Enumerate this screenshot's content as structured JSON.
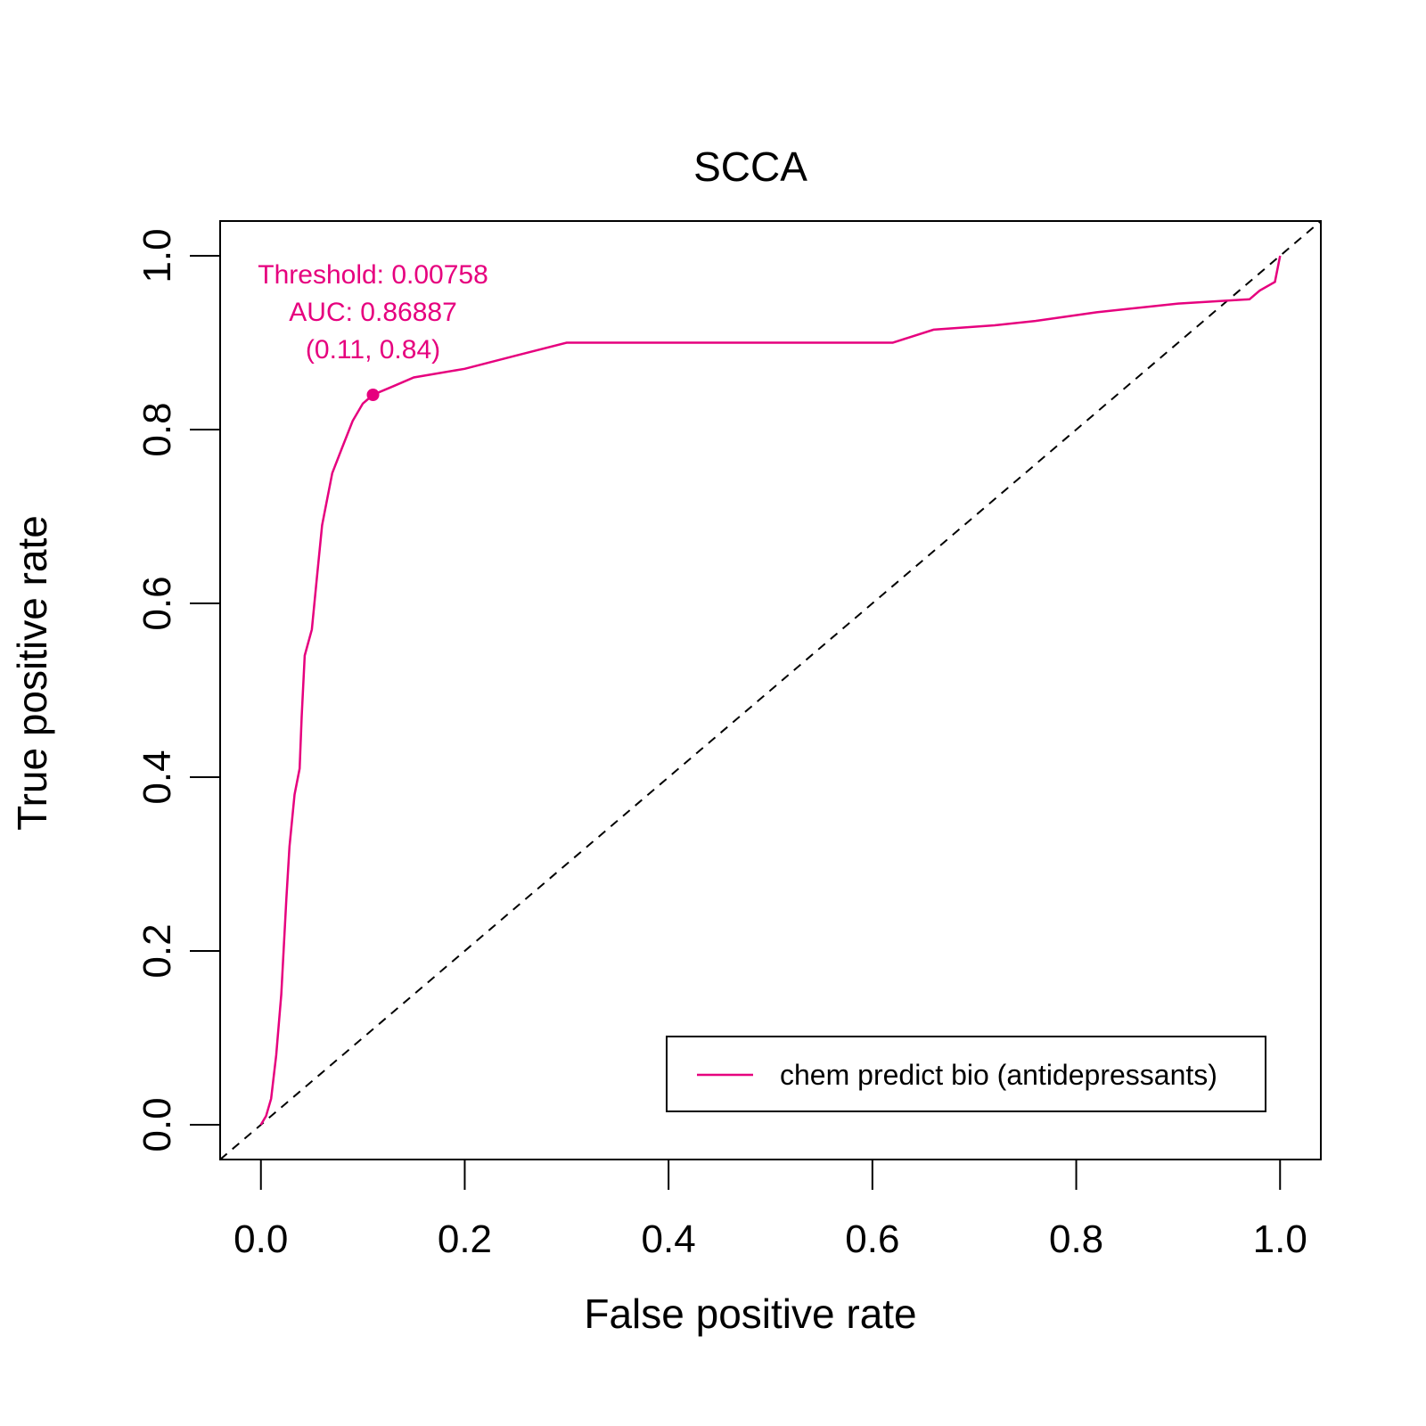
{
  "chart_data": {
    "type": "line",
    "title": "SCCA",
    "xlabel": "False positive rate",
    "ylabel": "True positive rate",
    "xlim": [
      -0.04,
      1.04
    ],
    "ylim": [
      -0.04,
      1.04
    ],
    "x_ticks": [
      0.0,
      0.2,
      0.4,
      0.6,
      0.8,
      1.0
    ],
    "y_ticks": [
      0.0,
      0.2,
      0.4,
      0.6,
      0.8,
      1.0
    ],
    "x_tick_labels": [
      "0.0",
      "0.2",
      "0.4",
      "0.6",
      "0.8",
      "1.0"
    ],
    "y_tick_labels": [
      "0.0",
      "0.2",
      "0.4",
      "0.6",
      "0.8",
      "1.0"
    ],
    "grid": false,
    "legend_position": "bottom-right",
    "series": [
      {
        "name": "chem predict bio (antidepressants)",
        "color": "#e6007e",
        "points": [
          [
            0.0,
            0.0
          ],
          [
            0.005,
            0.01
          ],
          [
            0.01,
            0.03
          ],
          [
            0.015,
            0.08
          ],
          [
            0.02,
            0.15
          ],
          [
            0.025,
            0.26
          ],
          [
            0.028,
            0.32
          ],
          [
            0.033,
            0.38
          ],
          [
            0.038,
            0.41
          ],
          [
            0.04,
            0.47
          ],
          [
            0.043,
            0.54
          ],
          [
            0.05,
            0.57
          ],
          [
            0.055,
            0.63
          ],
          [
            0.06,
            0.69
          ],
          [
            0.065,
            0.72
          ],
          [
            0.07,
            0.75
          ],
          [
            0.08,
            0.78
          ],
          [
            0.09,
            0.81
          ],
          [
            0.1,
            0.83
          ],
          [
            0.11,
            0.84
          ],
          [
            0.13,
            0.85
          ],
          [
            0.15,
            0.86
          ],
          [
            0.2,
            0.87
          ],
          [
            0.25,
            0.885
          ],
          [
            0.3,
            0.9
          ],
          [
            0.4,
            0.9
          ],
          [
            0.5,
            0.9
          ],
          [
            0.62,
            0.9
          ],
          [
            0.66,
            0.915
          ],
          [
            0.72,
            0.92
          ],
          [
            0.76,
            0.925
          ],
          [
            0.82,
            0.935
          ],
          [
            0.9,
            0.945
          ],
          [
            0.97,
            0.95
          ],
          [
            0.98,
            0.96
          ],
          [
            0.995,
            0.97
          ],
          [
            1.0,
            1.0
          ]
        ]
      }
    ],
    "reference_line": {
      "from": [
        0,
        0
      ],
      "to": [
        1,
        1
      ],
      "style": "dashed",
      "color": "#000000"
    },
    "marked_point": {
      "x": 0.11,
      "y": 0.84,
      "color": "#e6007e"
    },
    "annotations": [
      "Threshold: 0.00758",
      "AUC: 0.86887",
      "(0.11, 0.84)"
    ]
  }
}
